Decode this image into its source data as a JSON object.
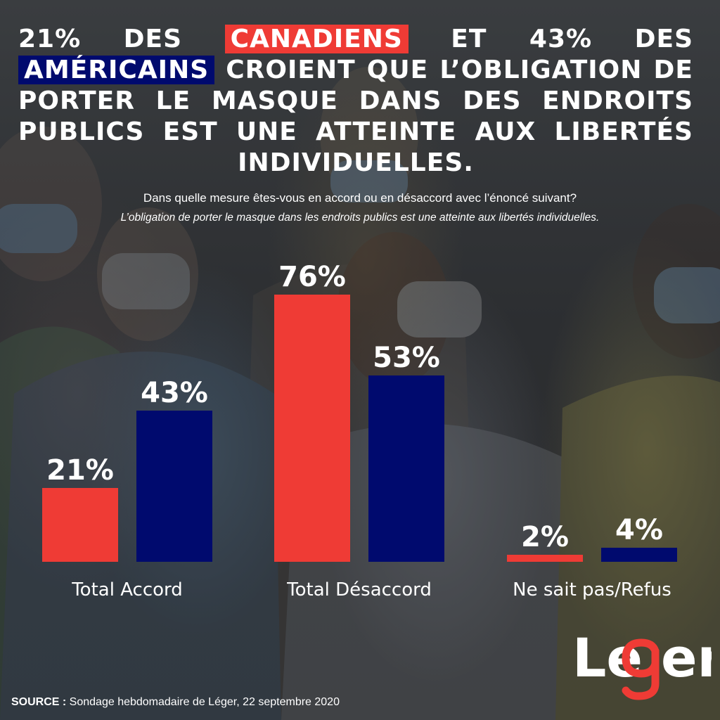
{
  "headline": {
    "part1": "21% des ",
    "canadiens": "Canadiens",
    "part2": " et 43% des ",
    "americains": "Américains",
    "part3": " croient que l’obligation de porter le masque dans des endroits publics est une atteinte aux libertés individuelles."
  },
  "question": "Dans quelle mesure êtes-vous en accord ou en désaccord avec l’énoncé suivant?",
  "statement": "L’obligation de porter le masque dans les endroits publics est une atteinte aux libertés individuelles.",
  "colors": {
    "canada": "#ef3b35",
    "usa": "#000a6e",
    "text": "#ffffff"
  },
  "chart_data": {
    "type": "bar",
    "title": "",
    "xlabel": "",
    "ylabel": "",
    "ylim": [
      0,
      76
    ],
    "grid": false,
    "categories": [
      "Total Accord",
      "Total Désaccord",
      "Ne sait pas/Refus"
    ],
    "series": [
      {
        "values": [
          21,
          76,
          2
        ],
        "labels": [
          "21%",
          "76%",
          "2%"
        ],
        "color": "#ef3b35"
      },
      {
        "values": [
          43,
          53,
          4
        ],
        "labels": [
          "43%",
          "53%",
          "4%"
        ],
        "color": "#000a6e"
      }
    ]
  },
  "logo": {
    "text_left": "Le",
    "text_right": "er",
    "icon": "leger-g-logo"
  },
  "source": {
    "key": "SOURCE :",
    "text": " Sondage hebdomadaire de Léger, 22 septembre 2020"
  }
}
